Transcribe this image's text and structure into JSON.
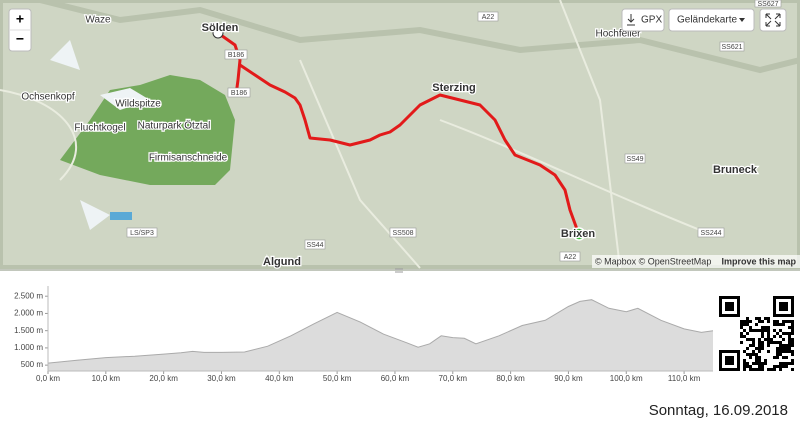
{
  "map": {
    "places": [
      "Waze",
      "Ochsenkopf",
      "Wildspitze",
      "Fluchtkogel",
      "Naturpark Ötztal",
      "Firmisanschneide",
      "Sölden",
      "Sterzing",
      "Hochfeiler",
      "Bruneck",
      "Algund",
      "Brixen"
    ],
    "roads": [
      "A22",
      "SS621",
      "SS49",
      "SS244",
      "SS508",
      "SS44",
      "LS/SP3",
      "B186",
      "B186",
      "A22",
      "SS627"
    ],
    "controls": {
      "zoom_in": "+",
      "zoom_out": "−",
      "gpx": "GPX",
      "layer": "Geländekarte"
    },
    "attribution": {
      "text": "© Mapbox © OpenStreetMap",
      "link": "Improve this map"
    }
  },
  "elevation_profile": {
    "xlim": [
      0,
      115
    ],
    "ylim": [
      330,
      2680
    ],
    "xticks": [
      {
        "value": 0,
        "label": "0,0 km"
      },
      {
        "value": 10,
        "label": "10,0 km"
      },
      {
        "value": 20,
        "label": "20,0 km"
      },
      {
        "value": 30,
        "label": "30,0 km"
      },
      {
        "value": 40,
        "label": "40,0 km"
      },
      {
        "value": 50,
        "label": "50,0 km"
      },
      {
        "value": 60,
        "label": "60,0 km"
      },
      {
        "value": 70,
        "label": "70,0 km"
      },
      {
        "value": 80,
        "label": "80,0 km"
      },
      {
        "value": 90,
        "label": "90,0 km"
      },
      {
        "value": 100,
        "label": "100,0 km"
      },
      {
        "value": 110,
        "label": "110,0 km"
      }
    ],
    "yticks": [
      {
        "value": 500,
        "label": "500 m"
      },
      {
        "value": 1000,
        "label": "1.000 m"
      },
      {
        "value": 1500,
        "label": "1.500 m"
      },
      {
        "value": 2000,
        "label": "2.000 m"
      },
      {
        "value": 2500,
        "label": "2.500 m"
      }
    ],
    "x": [
      0,
      5,
      10,
      15,
      20,
      23,
      25,
      27,
      30,
      34,
      38,
      42,
      46,
      50,
      54,
      58,
      62,
      64,
      66,
      68,
      70,
      72,
      74,
      78,
      82,
      86,
      90,
      92,
      94,
      97,
      100,
      102,
      106,
      110,
      113,
      115
    ],
    "values": [
      560,
      640,
      720,
      760,
      820,
      860,
      900,
      870,
      870,
      880,
      1050,
      1350,
      1700,
      2030,
      1750,
      1400,
      1150,
      1020,
      1120,
      1350,
      1300,
      1280,
      1120,
      1350,
      1650,
      1800,
      2200,
      2350,
      2400,
      2150,
      2050,
      2150,
      1800,
      1550,
      1450,
      1500
    ]
  },
  "date": "Sonntag, 16.09.2018"
}
